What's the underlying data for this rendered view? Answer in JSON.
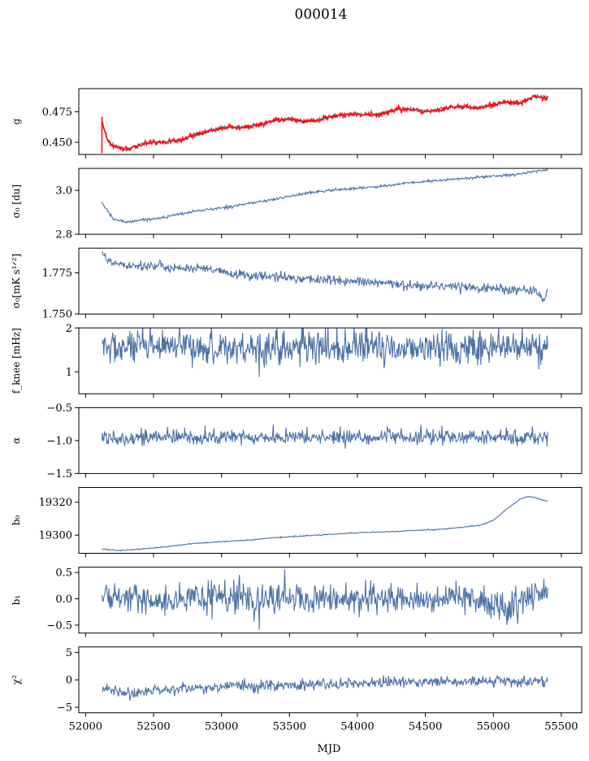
{
  "figure": {
    "title": "000014",
    "xlabel": "MJD"
  },
  "chart_data": {
    "type": "line",
    "title": "000014",
    "xlabel": "MJD",
    "xlim": [
      51950,
      55650
    ],
    "x_ticks": [
      52000,
      52500,
      53000,
      53500,
      54000,
      54500,
      55000,
      55500
    ],
    "x_start": 52120,
    "x_end": 55400,
    "colors": {
      "series": "#4c72a6",
      "overlay": "#ff0000"
    },
    "panels": [
      {
        "id": "g",
        "ylabel": "g",
        "ylim": [
          0.44,
          0.494
        ],
        "yticks": [
          0.45,
          0.475
        ],
        "ytick_labels": [
          "0.450",
          "0.475"
        ],
        "noise": 0.0007,
        "overlay": true,
        "overlay_noise": 0.001,
        "anchors": [
          [
            52120,
            0.468
          ],
          [
            52160,
            0.452
          ],
          [
            52200,
            0.447
          ],
          [
            52300,
            0.444
          ],
          [
            52400,
            0.448
          ],
          [
            52500,
            0.45
          ],
          [
            52600,
            0.45
          ],
          [
            52700,
            0.452
          ],
          [
            52800,
            0.456
          ],
          [
            52900,
            0.459
          ],
          [
            53000,
            0.462
          ],
          [
            53100,
            0.462
          ],
          [
            53200,
            0.463
          ],
          [
            53300,
            0.465
          ],
          [
            53400,
            0.468
          ],
          [
            53500,
            0.469
          ],
          [
            53600,
            0.467
          ],
          [
            53700,
            0.468
          ],
          [
            53800,
            0.471
          ],
          [
            53900,
            0.473
          ],
          [
            54000,
            0.473
          ],
          [
            54100,
            0.472
          ],
          [
            54200,
            0.474
          ],
          [
            54300,
            0.477
          ],
          [
            54400,
            0.477
          ],
          [
            54500,
            0.475
          ],
          [
            54600,
            0.477
          ],
          [
            54700,
            0.479
          ],
          [
            54800,
            0.479
          ],
          [
            54900,
            0.478
          ],
          [
            55000,
            0.481
          ],
          [
            55100,
            0.483
          ],
          [
            55200,
            0.482
          ],
          [
            55300,
            0.488
          ],
          [
            55400,
            0.486
          ]
        ]
      },
      {
        "id": "sigma0",
        "ylabel": "σ₀ [du]",
        "ylim": [
          2.8,
          3.1
        ],
        "yticks": [
          2.8,
          3.0
        ],
        "ytick_labels": [
          "2.8",
          "3.0"
        ],
        "noise": 0.003,
        "anchors": [
          [
            52120,
            2.945
          ],
          [
            52200,
            2.87
          ],
          [
            52300,
            2.855
          ],
          [
            52400,
            2.865
          ],
          [
            52500,
            2.87
          ],
          [
            52600,
            2.88
          ],
          [
            52800,
            2.905
          ],
          [
            53000,
            2.92
          ],
          [
            53200,
            2.94
          ],
          [
            53400,
            2.96
          ],
          [
            53600,
            2.985
          ],
          [
            53800,
            3.0
          ],
          [
            54000,
            3.01
          ],
          [
            54200,
            3.02
          ],
          [
            54400,
            3.035
          ],
          [
            54600,
            3.045
          ],
          [
            54800,
            3.055
          ],
          [
            55000,
            3.065
          ],
          [
            55200,
            3.075
          ],
          [
            55400,
            3.095
          ]
        ]
      },
      {
        "id": "sigma0-mks",
        "ylabel": "σ₀[mK s¹ᐟ²]",
        "ylim": [
          1.75,
          1.79
        ],
        "yticks": [
          1.75,
          1.775
        ],
        "ytick_labels": [
          "1.750",
          "1.775"
        ],
        "noise": 0.0015,
        "anchors": [
          [
            52120,
            1.789
          ],
          [
            52160,
            1.782
          ],
          [
            52300,
            1.78
          ],
          [
            52500,
            1.779
          ],
          [
            52700,
            1.778
          ],
          [
            52900,
            1.777
          ],
          [
            53100,
            1.774
          ],
          [
            53300,
            1.773
          ],
          [
            53500,
            1.772
          ],
          [
            53700,
            1.771
          ],
          [
            53900,
            1.77
          ],
          [
            54100,
            1.769
          ],
          [
            54300,
            1.768
          ],
          [
            54500,
            1.767
          ],
          [
            54700,
            1.767
          ],
          [
            54900,
            1.766
          ],
          [
            55100,
            1.765
          ],
          [
            55300,
            1.764
          ],
          [
            55380,
            1.758
          ],
          [
            55400,
            1.767
          ]
        ]
      },
      {
        "id": "fknee",
        "ylabel": "f_knee [mHz]",
        "ylim": [
          0.5,
          2.0
        ],
        "yticks": [
          1,
          2
        ],
        "ytick_labels": [
          "1",
          "2"
        ],
        "noise": 0.2,
        "anchors": [
          [
            52120,
            1.55
          ],
          [
            55400,
            1.55
          ]
        ]
      },
      {
        "id": "alpha",
        "ylabel": "α",
        "ylim": [
          -1.5,
          -0.5
        ],
        "yticks": [
          -1.5,
          -1.0,
          -0.5
        ],
        "ytick_labels": [
          "−1.5",
          "−1.0",
          "−0.5"
        ],
        "noise": 0.06,
        "anchors": [
          [
            52120,
            -0.95
          ],
          [
            55400,
            -0.95
          ]
        ]
      },
      {
        "id": "b0",
        "ylabel": "b₀",
        "ylim": [
          19289,
          19329
        ],
        "yticks": [
          19300,
          19320
        ],
        "ytick_labels": [
          "19300",
          "19320"
        ],
        "noise": 0.15,
        "anchors": [
          [
            52120,
            19291.5
          ],
          [
            52250,
            19290.7
          ],
          [
            52400,
            19291.5
          ],
          [
            52600,
            19293
          ],
          [
            52800,
            19295
          ],
          [
            53000,
            19296
          ],
          [
            53200,
            19297
          ],
          [
            53400,
            19298.5
          ],
          [
            53600,
            19299.5
          ],
          [
            53800,
            19300.5
          ],
          [
            54000,
            19301.5
          ],
          [
            54200,
            19302
          ],
          [
            54400,
            19302.8
          ],
          [
            54600,
            19303.5
          ],
          [
            54800,
            19305
          ],
          [
            54900,
            19306
          ],
          [
            55000,
            19309
          ],
          [
            55100,
            19316
          ],
          [
            55200,
            19322
          ],
          [
            55250,
            19323.5
          ],
          [
            55300,
            19323
          ],
          [
            55400,
            19320.5
          ]
        ]
      },
      {
        "id": "b1",
        "ylabel": "b₁",
        "ylim": [
          -0.65,
          0.6
        ],
        "yticks": [
          -0.5,
          0.0,
          0.5
        ],
        "ytick_labels": [
          "−0.5",
          "0.0",
          "0.5"
        ],
        "noise": 0.14,
        "anchors": [
          [
            52120,
            0.05
          ],
          [
            52500,
            0.0
          ],
          [
            53000,
            0.0
          ],
          [
            53500,
            0.0
          ],
          [
            54000,
            0.0
          ],
          [
            54500,
            0.0
          ],
          [
            54900,
            0.02
          ],
          [
            55050,
            -0.15
          ],
          [
            55150,
            -0.2
          ],
          [
            55300,
            0.1
          ],
          [
            55400,
            0.15
          ]
        ]
      },
      {
        "id": "chi2",
        "ylabel": "χ²",
        "ylim": [
          -6,
          6
        ],
        "yticks": [
          -5,
          0,
          5
        ],
        "ytick_labels": [
          "−5",
          "0",
          "5"
        ],
        "noise": 0.5,
        "anchors": [
          [
            52120,
            -1.5
          ],
          [
            52300,
            -2.5
          ],
          [
            52600,
            -1.7
          ],
          [
            53000,
            -1.2
          ],
          [
            53500,
            -1.0
          ],
          [
            54000,
            -0.6
          ],
          [
            54500,
            -0.4
          ],
          [
            55000,
            -0.3
          ],
          [
            55400,
            -0.3
          ]
        ]
      }
    ]
  }
}
